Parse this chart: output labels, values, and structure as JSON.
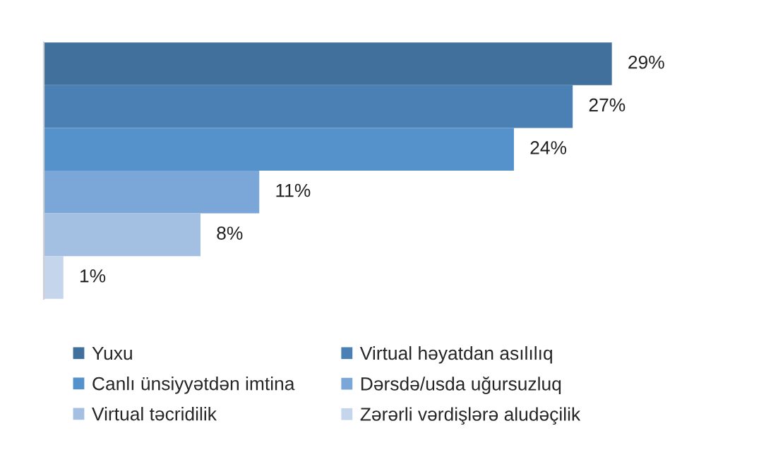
{
  "chart_data": {
    "type": "bar",
    "orientation": "horizontal",
    "categories": [
      null
    ],
    "series": [
      {
        "name": "Yuxu",
        "color": "#41709c",
        "values": [
          29
        ],
        "value_labels": [
          "29%"
        ]
      },
      {
        "name": "Virtual həyatdan asılılıq",
        "color": "#4a80b4",
        "values": [
          27
        ],
        "value_labels": [
          "27%"
        ]
      },
      {
        "name": "Canlı ünsiyyətdən imtina",
        "color": "#5592cb",
        "values": [
          24
        ],
        "value_labels": [
          "24%"
        ]
      },
      {
        "name": "Dərsdə/usda uğursuzluq",
        "color": "#7aa7d8",
        "values": [
          11
        ],
        "value_labels": [
          "11%"
        ]
      },
      {
        "name": "Virtual təcridilik",
        "color": "#a3bfe2",
        "values": [
          8
        ],
        "value_labels": [
          "8%"
        ]
      },
      {
        "name": "Zərərli vərdişlərə aludəçilik",
        "color": "#c5d5ec",
        "values": [
          1
        ],
        "value_labels": [
          "1%"
        ]
      }
    ],
    "legend": "bottom"
  }
}
